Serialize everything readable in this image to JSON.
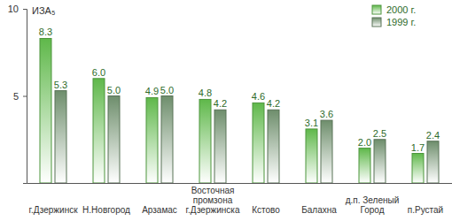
{
  "chart_data": {
    "type": "bar",
    "y_label": "ИЗА₅",
    "categories": [
      "г.Дзержинск",
      "Н.Новгород",
      "Арзамас",
      "Восточная\nпромзона\nг.Дзержинска",
      "Кстово",
      "Балахна",
      "д.п. Зеленый\nГород",
      "п.Рустай"
    ],
    "series": [
      {
        "name": "2000 г.",
        "color": "#5fb84a",
        "values": [
          8.3,
          6.0,
          4.9,
          4.8,
          4.6,
          3.1,
          2.0,
          1.7
        ],
        "value_labels": [
          "8.3",
          "6.0",
          "4.9",
          "4.8",
          "4.6",
          "3.1",
          "2.0",
          "1.7"
        ]
      },
      {
        "name": "1999 г.",
        "color": "#6e8e6c",
        "values": [
          5.3,
          5.0,
          5.0,
          4.2,
          4.2,
          3.6,
          2.5,
          2.4
        ],
        "value_labels": [
          "5.3",
          "5.0",
          "5.0",
          "4.2",
          "4.2",
          "3.6",
          "2.5",
          "2.4"
        ]
      }
    ],
    "ylim": [
      0,
      10
    ],
    "yticks": [
      5,
      10
    ],
    "grid": false,
    "legend": "top-right",
    "data_labels": true
  }
}
